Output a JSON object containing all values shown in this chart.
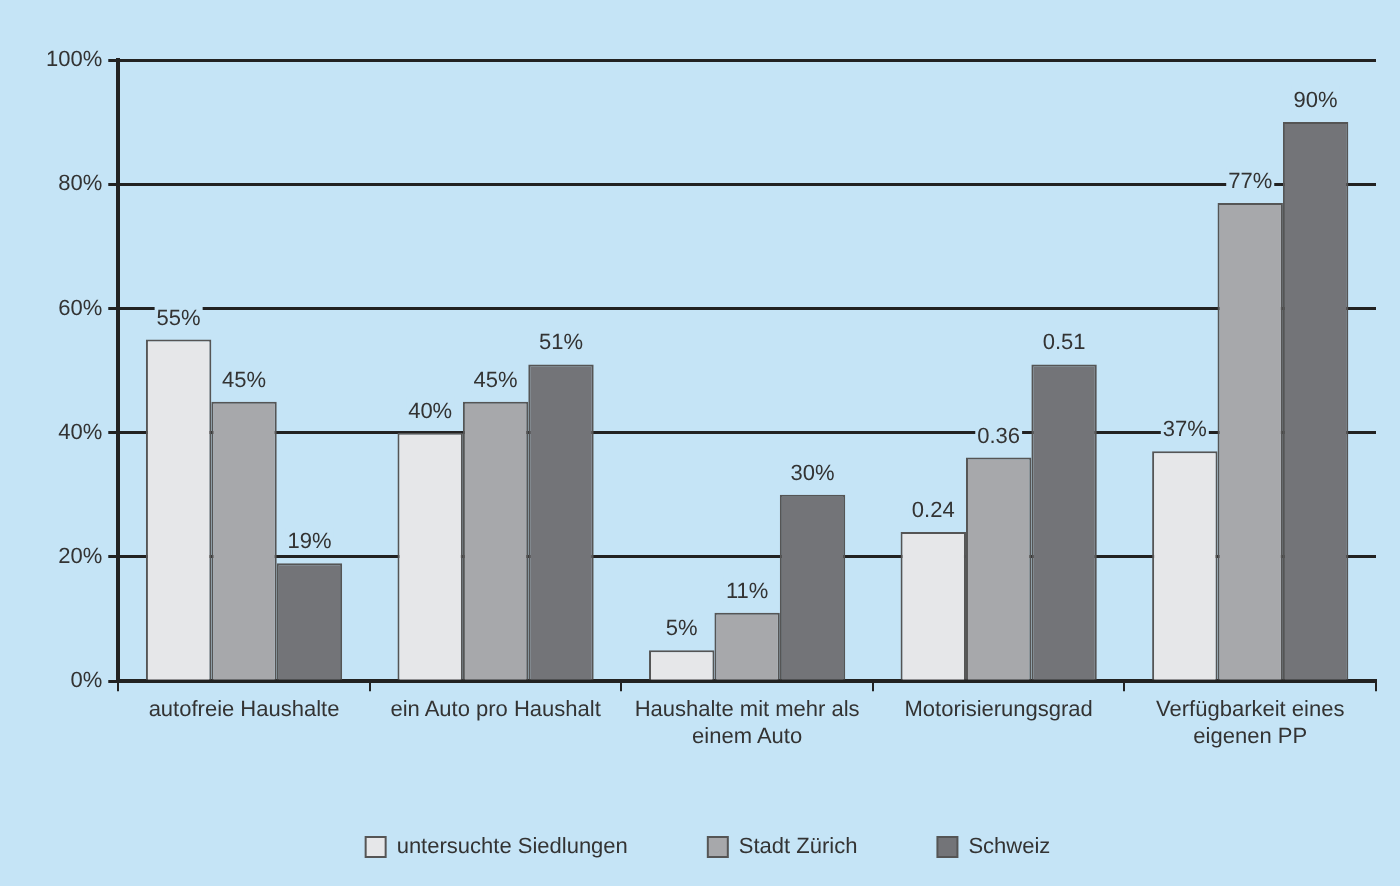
{
  "chart_data": {
    "type": "bar",
    "categories": [
      "autofreie Haushalte",
      "ein Auto pro Haushalt",
      "Haushalte mit mehr als einem Auto",
      "Motorisierungsgrad",
      "Verfügbarkeit eines eigenen PP"
    ],
    "series": [
      {
        "name": "untersuchte Siedlungen",
        "color": "#e6e7e9",
        "values": [
          55,
          40,
          5,
          24,
          37
        ],
        "value_labels": [
          "55%",
          "40%",
          "5%",
          null,
          "37%"
        ]
      },
      {
        "name": "Stadt Zürich",
        "color": "#a7a8ab",
        "values": [
          45,
          45,
          11,
          36,
          77
        ],
        "value_labels": [
          "45%",
          "45%",
          "11%",
          null,
          "77%"
        ]
      },
      {
        "name": "Schweiz",
        "color": "#737478",
        "values": [
          19,
          51,
          30,
          51,
          90
        ],
        "value_labels": [
          "19%",
          "51%",
          "30%",
          null,
          "90%"
        ]
      }
    ],
    "ylim": [
      0,
      100
    ],
    "yticks": [
      {
        "value": 0,
        "label": "0%"
      },
      {
        "value": 20,
        "label": "20%"
      },
      {
        "value": 40,
        "label": "40%"
      },
      {
        "value": 60,
        "label": "60%"
      },
      {
        "value": 80,
        "label": "80%"
      },
      {
        "value": 100,
        "label": "100%"
      }
    ],
    "annotations": [
      "0.24",
      "0.36",
      "0.51"
    ],
    "grid": "y",
    "legend": "bottom"
  }
}
